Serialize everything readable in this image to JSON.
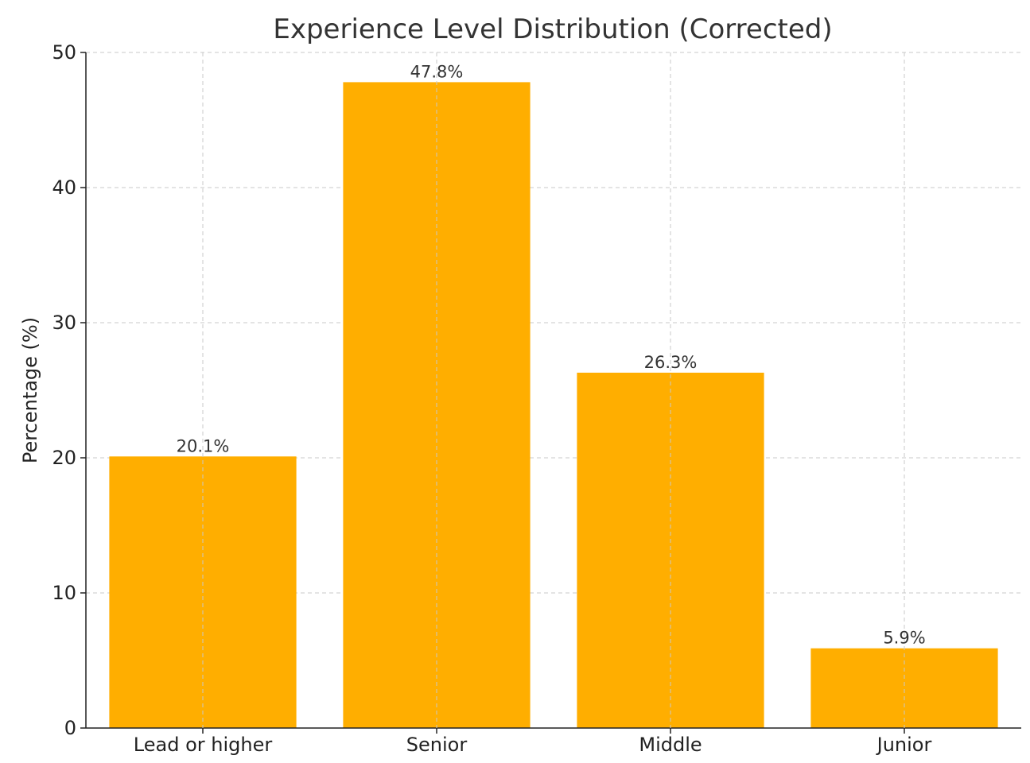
{
  "chart_data": {
    "type": "bar",
    "title": "Experience Level Distribution (Corrected)",
    "xlabel": "",
    "ylabel": "Percentage (%)",
    "categories": [
      "Lead or higher",
      "Senior",
      "Middle",
      "Junior"
    ],
    "values": [
      20.1,
      47.8,
      26.3,
      5.9
    ],
    "value_labels": [
      "20.1%",
      "47.8%",
      "26.3%",
      "5.9%"
    ],
    "ylim": [
      0,
      50
    ],
    "yticks": [
      0,
      10,
      20,
      30,
      40,
      50
    ],
    "ytick_labels": [
      "0",
      "10",
      "20",
      "30",
      "40",
      "50"
    ],
    "grid": true,
    "bar_color": "#FFAE00"
  }
}
